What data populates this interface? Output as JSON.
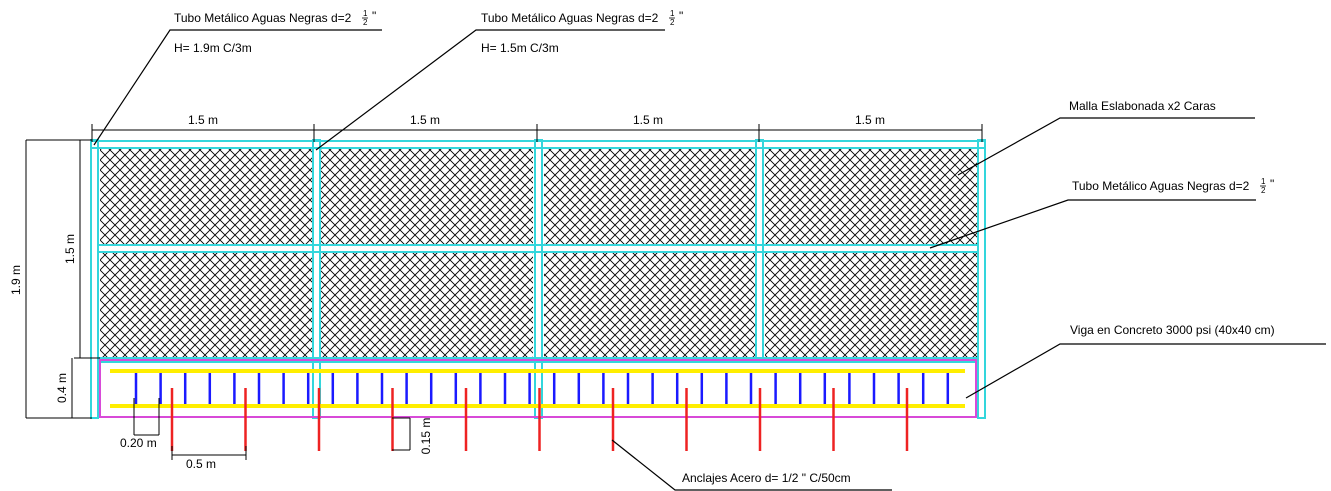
{
  "callouts": {
    "tube_left": {
      "title": "Tubo Metálico Aguas Negras d=2",
      "frac_num": "1",
      "frac_den": "2",
      "suffix": "\"",
      "height": "H= 1.9m C/3m"
    },
    "tube_mid": {
      "title": "Tubo Metálico Aguas Negras d=2",
      "frac_num": "1",
      "frac_den": "2",
      "suffix": "\"",
      "height": "H= 1.5m C/3m"
    },
    "mesh": {
      "title": "Malla Eslabonada x2 Caras"
    },
    "tube_right": {
      "title": "Tubo Metálico Aguas Negras d=2",
      "frac_num": "1",
      "frac_den": "2",
      "suffix": "\""
    },
    "beam": {
      "title": "Viga en Concreto 3000 psi (40x40 cm)"
    },
    "anchors": {
      "title": "Anclajes Acero d= 1/2 \" C/50cm"
    }
  },
  "dimensions": {
    "span_labels": [
      "1.5 m",
      "1.5 m",
      "1.5 m",
      "1.5 m"
    ],
    "total_height": "1.9 m",
    "fence_height": "1.5 m",
    "beam_height": "0.4 m",
    "stirrup_spacing": "0.20 m",
    "anchor_spacing": "0.5 m",
    "anchor_embed": "0.15 m"
  },
  "colors": {
    "tube": "#33d6dc",
    "mesh": "#000000",
    "beam_outline": "#d84ad8",
    "rebar_long": "#ffee00",
    "stirrup": "#1a1aff",
    "anchor": "#ee2222",
    "line": "#000000"
  }
}
